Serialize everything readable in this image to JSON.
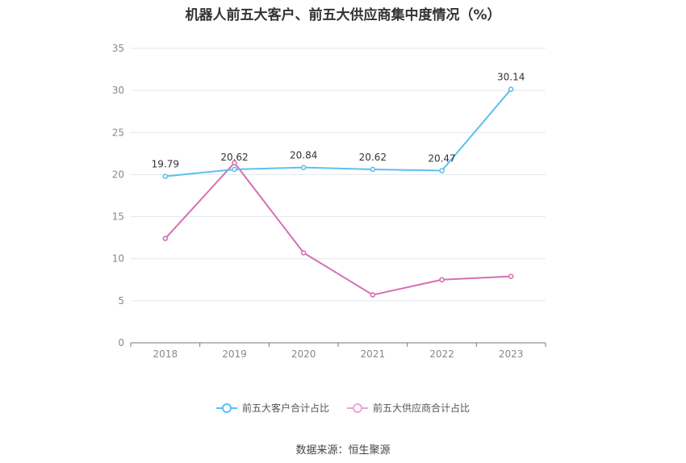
{
  "chart_data": {
    "type": "line",
    "title": "机器人前五大客户、前五大供应商集中度情况（%）",
    "x": [
      "2018",
      "2019",
      "2020",
      "2021",
      "2022",
      "2023"
    ],
    "ylim": [
      0,
      35
    ],
    "yticks": [
      0,
      5,
      10,
      15,
      20,
      25,
      30,
      35
    ],
    "grid": true,
    "legend_position": "bottom",
    "series": [
      {
        "name": "前五大客户合计占比",
        "color": "#5bc0ee",
        "values": [
          19.79,
          20.62,
          20.84,
          20.62,
          20.47,
          30.14
        ],
        "labels": [
          "19.79",
          "20.62",
          "20.84",
          "20.62",
          "20.47",
          "30.14"
        ],
        "show_labels": true
      },
      {
        "name": "前五大供应商合计占比",
        "color": "#d670b4",
        "values": [
          12.4,
          21.4,
          10.7,
          5.7,
          7.5,
          7.9
        ],
        "show_labels": false
      }
    ]
  },
  "source": "数据来源：恒生聚源"
}
